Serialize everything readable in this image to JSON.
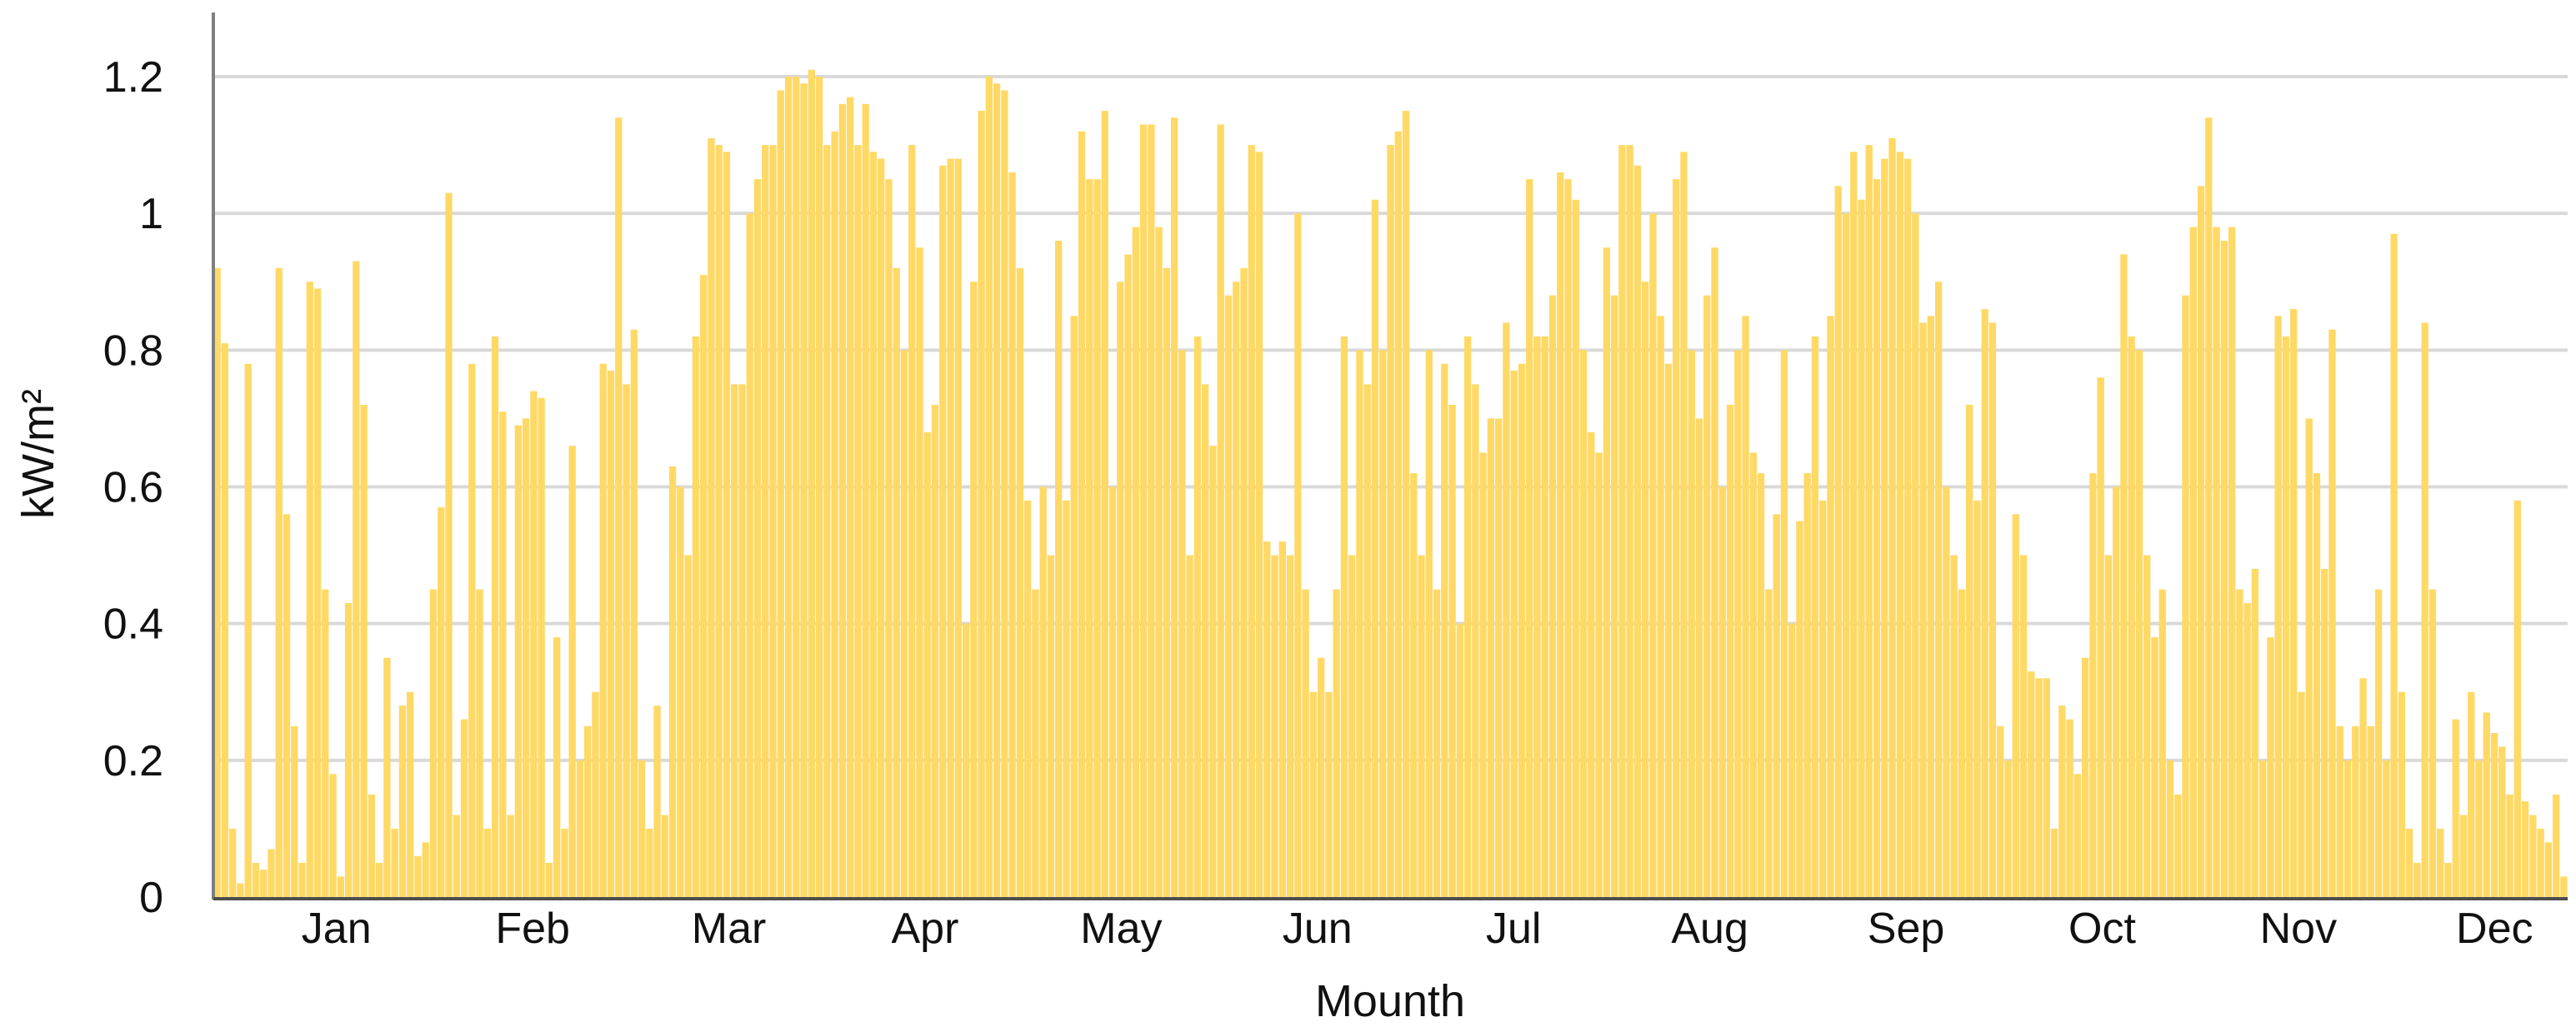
{
  "chart_data": {
    "type": "bar",
    "title": "",
    "xlabel": "Mounth",
    "ylabel": "kW/m²",
    "ylim": [
      0,
      1.2
    ],
    "y_ticks": [
      "0",
      "0.2",
      "0.4",
      "0.6",
      "0.8",
      "1",
      "1.2"
    ],
    "x_ticks": [
      "Jan",
      "Feb",
      "Mar",
      "Apr",
      "May",
      "Jun",
      "Jul",
      "Aug",
      "Sep",
      "Oct",
      "Nov",
      "Dec"
    ],
    "grid": true,
    "legend": "none",
    "x_unit": "day of year",
    "series": [
      {
        "color": "#FFD966",
        "daily_peak_values": [
          0.92,
          0.81,
          0.1,
          0.02,
          0.78,
          0.05,
          0.04,
          0.07,
          0.92,
          0.56,
          0.25,
          0.05,
          0.9,
          0.89,
          0.45,
          0.18,
          0.03,
          0.43,
          0.93,
          0.72,
          0.15,
          0.05,
          0.35,
          0.1,
          0.28,
          0.3,
          0.06,
          0.08,
          0.45,
          0.57,
          1.03,
          0.12,
          0.26,
          0.78,
          0.45,
          0.1,
          0.82,
          0.71,
          0.12,
          0.69,
          0.7,
          0.74,
          0.73,
          0.05,
          0.38,
          0.1,
          0.66,
          0.2,
          0.25,
          0.3,
          0.78,
          0.77,
          1.14,
          0.75,
          0.83,
          0.2,
          0.1,
          0.28,
          0.12,
          0.63,
          0.6,
          0.5,
          0.82,
          0.91,
          1.11,
          1.1,
          1.09,
          0.75,
          0.75,
          1.0,
          1.05,
          1.1,
          1.1,
          1.18,
          1.2,
          1.2,
          1.19,
          1.21,
          1.2,
          1.1,
          1.12,
          1.16,
          1.17,
          1.1,
          1.16,
          1.09,
          1.08,
          1.05,
          0.92,
          0.8,
          1.1,
          0.95,
          0.68,
          0.72,
          1.07,
          1.08,
          1.08,
          0.4,
          0.9,
          1.15,
          1.2,
          1.19,
          1.18,
          1.06,
          0.92,
          0.58,
          0.45,
          0.6,
          0.5,
          0.96,
          0.58,
          0.85,
          1.12,
          1.05,
          1.05,
          1.15,
          0.6,
          0.9,
          0.94,
          0.98,
          1.13,
          1.13,
          0.98,
          0.92,
          1.14,
          0.8,
          0.5,
          0.82,
          0.75,
          0.66,
          1.13,
          0.88,
          0.9,
          0.92,
          1.1,
          1.09,
          0.52,
          0.5,
          0.52,
          0.5,
          1.0,
          0.45,
          0.3,
          0.35,
          0.3,
          0.45,
          0.82,
          0.5,
          0.8,
          0.75,
          1.02,
          0.8,
          1.1,
          1.12,
          1.15,
          0.62,
          0.5,
          0.8,
          0.45,
          0.78,
          0.72,
          0.4,
          0.82,
          0.75,
          0.65,
          0.7,
          0.7,
          0.84,
          0.77,
          0.78,
          1.05,
          0.82,
          0.82,
          0.88,
          1.06,
          1.05,
          1.02,
          0.8,
          0.68,
          0.65,
          0.95,
          0.88,
          1.1,
          1.1,
          1.07,
          0.9,
          1.0,
          0.85,
          0.78,
          1.05,
          1.09,
          0.8,
          0.7,
          0.88,
          0.95,
          0.6,
          0.72,
          0.8,
          0.85,
          0.65,
          0.62,
          0.45,
          0.56,
          0.8,
          0.4,
          0.55,
          0.62,
          0.82,
          0.58,
          0.85,
          1.04,
          1.0,
          1.09,
          1.02,
          1.1,
          1.05,
          1.08,
          1.11,
          1.09,
          1.08,
          1.0,
          0.84,
          0.85,
          0.9,
          0.6,
          0.5,
          0.45,
          0.72,
          0.58,
          0.86,
          0.84,
          0.25,
          0.2,
          0.56,
          0.5,
          0.33,
          0.32,
          0.32,
          0.1,
          0.28,
          0.26,
          0.18,
          0.35,
          0.62,
          0.76,
          0.5,
          0.6,
          0.94,
          0.82,
          0.8,
          0.5,
          0.38,
          0.45,
          0.2,
          0.15,
          0.88,
          0.98,
          1.04,
          1.14,
          0.98,
          0.96,
          0.98,
          0.45,
          0.43,
          0.48,
          0.2,
          0.38,
          0.85,
          0.82,
          0.86,
          0.3,
          0.7,
          0.62,
          0.48,
          0.83,
          0.25,
          0.2,
          0.25,
          0.32,
          0.25,
          0.45,
          0.2,
          0.97,
          0.3,
          0.1,
          0.05,
          0.84,
          0.45,
          0.1,
          0.05,
          0.26,
          0.12,
          0.3,
          0.2,
          0.27,
          0.24,
          0.22,
          0.15,
          0.58,
          0.14,
          0.12,
          0.1,
          0.08,
          0.15,
          0.03
        ]
      }
    ]
  }
}
